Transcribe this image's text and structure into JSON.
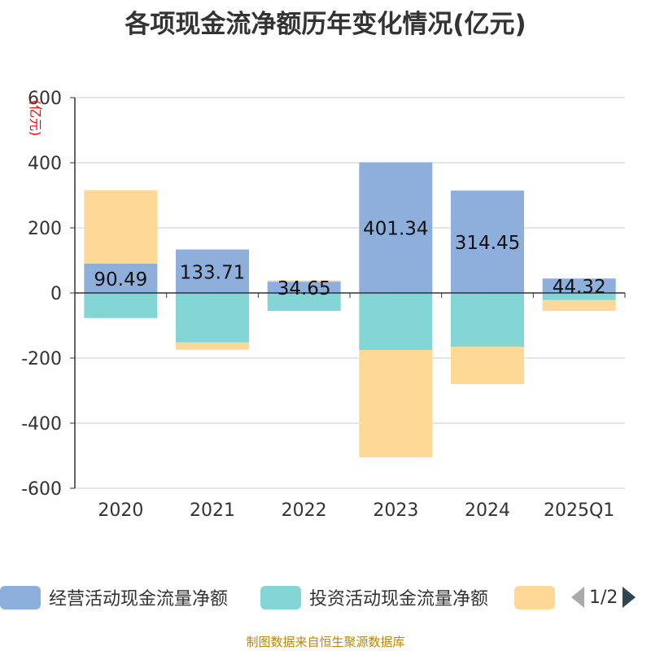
{
  "title": "各项现金流净额历年变化情况(亿元)",
  "source": "制图数据来自恒生聚源数据库",
  "colors": {
    "operating": "#8eaedb",
    "investing": "#84d5d6",
    "financing": "#fed897"
  },
  "legend": {
    "items": [
      {
        "label": "经营活动现金流量净额",
        "color": "#8eaedb"
      },
      {
        "label": "投资活动现金流量净额",
        "color": "#84d5d6"
      },
      {
        "label": "",
        "color": "#fed897"
      }
    ],
    "page": "1/2",
    "prev_icon": "triangle-left-icon",
    "next_icon": "triangle-right-icon"
  },
  "chart_data": {
    "type": "bar",
    "stacked": true,
    "title": "各项现金流净额历年变化情况(亿元)",
    "ylabel": "(亿元)",
    "xlabel": "",
    "ylim": [
      -600,
      600
    ],
    "yticks": [
      600,
      400,
      200,
      0,
      -200,
      -400,
      -600
    ],
    "categories": [
      "2020",
      "2021",
      "2022",
      "2023",
      "2024",
      "2025Q1"
    ],
    "grid": true,
    "legend_position": "bottom",
    "series": [
      {
        "name": "经营活动现金流量净额",
        "color": "#8eaedb",
        "values": [
          90.49,
          133.71,
          34.65,
          401.34,
          314.45,
          44.32
        ],
        "labels": [
          "90.49",
          "133.71",
          "34.65",
          "401.34",
          "314.45",
          "44.32"
        ]
      },
      {
        "name": "投资活动现金流量净额",
        "color": "#84d5d6",
        "values": [
          -77,
          -152,
          -55,
          -175,
          -165,
          -22
        ]
      },
      {
        "color": "#fed897",
        "values": [
          225,
          -22,
          4,
          -330,
          -115,
          -33
        ]
      }
    ]
  }
}
